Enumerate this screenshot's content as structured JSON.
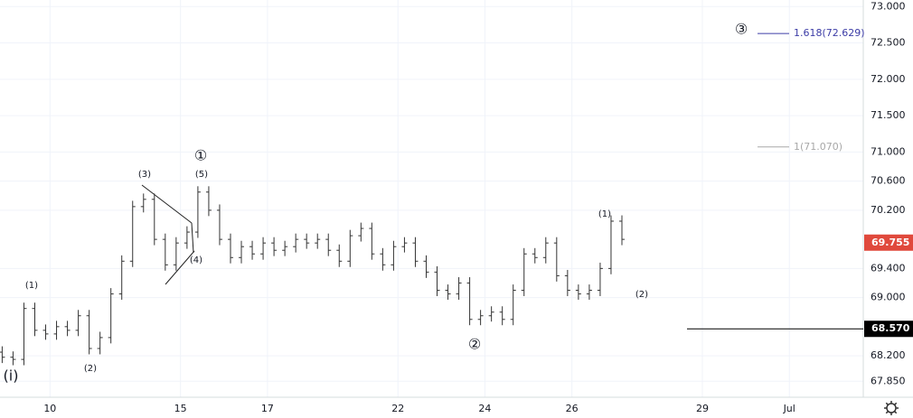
{
  "chart_data": {
    "type": "ohlc",
    "color": "#333333",
    "x": [
      -1.1,
      -0.85,
      -0.6,
      -0.35,
      -0.1,
      0.15,
      0.4,
      0.65,
      0.9,
      1.15,
      1.4,
      1.65,
      1.9,
      2.15,
      2.4,
      2.65,
      2.9,
      3.15,
      3.4,
      3.65,
      3.9,
      4.15,
      4.4,
      4.65,
      4.9,
      5.15,
      5.4,
      5.65,
      5.9,
      6.15,
      6.4,
      6.65,
      6.9,
      7.15,
      7.4,
      7.65,
      7.9,
      8.15,
      8.4,
      8.65,
      8.9,
      9.15,
      9.4,
      9.65,
      9.9,
      10.15,
      10.4,
      10.65,
      10.9,
      11.15,
      11.4,
      11.65,
      11.9,
      12.15,
      12.4,
      12.65,
      12.9,
      13.15
    ],
    "open": [
      68.25,
      68.18,
      68.15,
      68.85,
      68.55,
      68.5,
      68.6,
      68.55,
      68.75,
      68.3,
      68.45,
      69.05,
      69.5,
      70.25,
      70.35,
      69.8,
      69.45,
      69.75,
      69.9,
      70.45,
      70.2,
      69.8,
      69.55,
      69.7,
      69.6,
      69.75,
      69.65,
      69.7,
      69.8,
      69.75,
      69.8,
      69.65,
      69.5,
      69.85,
      69.95,
      69.6,
      69.45,
      69.7,
      69.75,
      69.5,
      69.35,
      69.1,
      69.05,
      69.2,
      68.7,
      68.75,
      68.8,
      68.7,
      69.1,
      69.6,
      69.55,
      69.75,
      69.3,
      69.1,
      69.05,
      69.1,
      69.4,
      70.05
    ],
    "high": [
      68.33,
      68.26,
      68.93,
      68.93,
      68.63,
      68.68,
      68.68,
      68.83,
      68.83,
      68.53,
      69.13,
      69.58,
      70.33,
      70.43,
      70.43,
      69.88,
      69.83,
      69.98,
      70.53,
      70.53,
      70.28,
      69.88,
      69.78,
      69.78,
      69.83,
      69.83,
      69.78,
      69.88,
      69.88,
      69.88,
      69.88,
      69.73,
      69.93,
      70.03,
      70.03,
      69.68,
      69.78,
      69.83,
      69.83,
      69.58,
      69.43,
      69.18,
      69.28,
      69.28,
      68.83,
      68.88,
      68.88,
      69.18,
      69.68,
      69.68,
      69.83,
      69.83,
      69.38,
      69.18,
      69.18,
      69.48,
      70.13,
      70.13
    ],
    "low": [
      68.1,
      68.07,
      68.07,
      68.47,
      68.42,
      68.42,
      68.47,
      68.47,
      68.22,
      68.22,
      68.37,
      68.97,
      69.42,
      70.17,
      69.72,
      69.37,
      69.37,
      69.67,
      69.82,
      70.12,
      69.72,
      69.47,
      69.47,
      69.52,
      69.52,
      69.57,
      69.57,
      69.62,
      69.67,
      69.67,
      69.57,
      69.42,
      69.42,
      69.77,
      69.52,
      69.37,
      69.37,
      69.62,
      69.42,
      69.27,
      69.02,
      68.97,
      68.97,
      68.62,
      68.62,
      68.67,
      68.62,
      68.62,
      69.02,
      69.47,
      69.47,
      69.22,
      69.02,
      68.97,
      68.97,
      69.02,
      69.32,
      69.72
    ],
    "close": [
      68.18,
      68.15,
      68.85,
      68.55,
      68.5,
      68.6,
      68.55,
      68.75,
      68.3,
      68.45,
      69.05,
      69.5,
      70.25,
      70.35,
      69.8,
      69.45,
      69.75,
      69.9,
      70.45,
      70.2,
      69.8,
      69.55,
      69.7,
      69.6,
      69.75,
      69.65,
      69.7,
      69.8,
      69.75,
      69.8,
      69.65,
      69.5,
      69.85,
      69.95,
      69.6,
      69.45,
      69.7,
      69.75,
      69.5,
      69.35,
      69.1,
      69.05,
      69.2,
      68.7,
      68.75,
      68.8,
      68.7,
      69.1,
      69.6,
      69.55,
      69.75,
      69.3,
      69.1,
      69.05,
      69.1,
      69.4,
      70.05,
      69.8
    ],
    "xlim": [
      -1.15,
      18.7
    ],
    "ylim": [
      67.63,
      73.09
    ],
    "xticks": [
      {
        "value": 0,
        "label": "10"
      },
      {
        "value": 3,
        "label": "15"
      },
      {
        "value": 5,
        "label": "17"
      },
      {
        "value": 8,
        "label": "22"
      },
      {
        "value": 10,
        "label": "24"
      },
      {
        "value": 12,
        "label": "26"
      },
      {
        "value": 15,
        "label": "29"
      },
      {
        "value": 17,
        "label": "Jul"
      }
    ],
    "yticks": [
      {
        "value": 73,
        "label": "73.000"
      },
      {
        "value": 72.5,
        "label": "72.500"
      },
      {
        "value": 72,
        "label": "72.000"
      },
      {
        "value": 71.5,
        "label": "71.500"
      },
      {
        "value": 71,
        "label": "71.000"
      },
      {
        "value": 70.6,
        "label": "70.600"
      },
      {
        "value": 70.2,
        "label": "70.200"
      },
      {
        "value": 69.4,
        "label": "69.400"
      },
      {
        "value": 69,
        "label": "69.000"
      },
      {
        "value": 68.2,
        "label": "68.200"
      },
      {
        "value": 67.85,
        "label": "67.850"
      }
    ],
    "grid": true,
    "last_price": 69.755,
    "last_price_color": "#e0493c",
    "support_line": {
      "value": 68.57,
      "label": "68.570"
    },
    "fib_levels": [
      {
        "value": 72.629,
        "label": "1.618(72.629)",
        "color": "#3c3ca6"
      },
      {
        "value": 71.07,
        "label": "1(71.070)",
        "color": "#a8a8a8"
      }
    ],
    "annotations": [
      "(i)",
      "(1)",
      "(2)",
      "(3)",
      "(4)",
      "(5)",
      "①",
      "②",
      "(1)",
      "(2)",
      "③"
    ]
  }
}
